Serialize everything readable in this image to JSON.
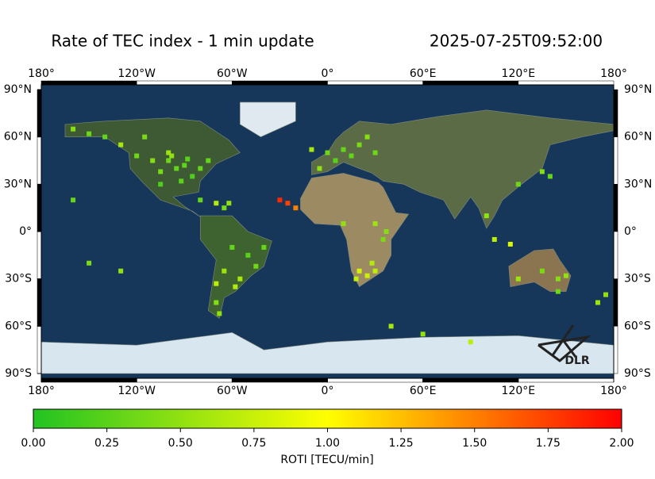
{
  "chart_data": {
    "type": "map",
    "title": "Rate of TEC index - 1 min update",
    "timestamp": "2025-07-25T09:52:00",
    "logo": "DLR",
    "colorbar_label": "ROTI [TECU/min]",
    "colormap": [
      "#22c322",
      "#ffff00",
      "#ff0000"
    ],
    "clim": [
      0,
      2
    ],
    "cticks": [
      {
        "value": 0,
        "label": "0.00"
      },
      {
        "value": 0.25,
        "label": "0.25"
      },
      {
        "value": 0.5,
        "label": "0.50"
      },
      {
        "value": 0.75,
        "label": "0.75"
      },
      {
        "value": 1,
        "label": "1.00"
      },
      {
        "value": 1.25,
        "label": "1.25"
      },
      {
        "value": 1.5,
        "label": "1.50"
      },
      {
        "value": 1.75,
        "label": "1.75"
      },
      {
        "value": 2,
        "label": "2.00"
      }
    ],
    "xlim": [
      -180,
      180
    ],
    "xticks": [
      {
        "value": -180,
        "label": "180°"
      },
      {
        "value": -120,
        "label": "120°W"
      },
      {
        "value": -60,
        "label": "60°W"
      },
      {
        "value": 0,
        "label": "0°"
      },
      {
        "value": 60,
        "label": "60°E"
      },
      {
        "value": 120,
        "label": "120°E"
      },
      {
        "value": 180,
        "label": "180°"
      }
    ],
    "ylim": [
      -90,
      90
    ],
    "yticks": [
      {
        "value": 90,
        "label": "90°N"
      },
      {
        "value": 60,
        "label": "60°N"
      },
      {
        "value": 30,
        "label": "30°N"
      },
      {
        "value": 0,
        "label": "0°"
      },
      {
        "value": -30,
        "label": "30°S"
      },
      {
        "value": -60,
        "label": "60°S"
      },
      {
        "value": -90,
        "label": "90°S"
      }
    ],
    "lon": [
      -100,
      -95,
      -90,
      -105,
      -85,
      -80,
      -110,
      -120,
      -98,
      -88,
      -100,
      -75,
      -115,
      -150,
      -140,
      -160,
      -130,
      -92,
      -105,
      -80,
      -70,
      -65,
      -62,
      -60,
      -50,
      -45,
      -55,
      -65,
      -70,
      -58,
      -70,
      -68,
      -40,
      -30,
      -25,
      -20,
      0,
      10,
      20,
      5,
      15,
      -5,
      25,
      30,
      -10,
      20,
      25,
      30,
      28,
      18,
      35,
      37,
      10,
      30,
      140,
      135,
      120,
      100,
      105,
      115,
      145,
      150,
      135,
      120,
      145,
      175,
      170,
      -160,
      -150,
      -130,
      60,
      90,
      40
    ],
    "lat": [
      45,
      40,
      42,
      38,
      35,
      40,
      45,
      48,
      48,
      46,
      50,
      45,
      60,
      62,
      60,
      65,
      55,
      32,
      30,
      20,
      18,
      15,
      18,
      -10,
      -15,
      -22,
      -30,
      -25,
      -33,
      -35,
      -45,
      -52,
      -10,
      20,
      18,
      15,
      50,
      52,
      55,
      45,
      48,
      40,
      60,
      50,
      52,
      -25,
      -28,
      -25,
      -20,
      -30,
      -5,
      0,
      5,
      5,
      35,
      38,
      30,
      10,
      -5,
      -8,
      -30,
      -28,
      -25,
      -30,
      -38,
      -40,
      -45,
      20,
      -20,
      -25,
      -65,
      -70,
      -60
    ],
    "values": [
      0.35,
      0.3,
      0.28,
      0.4,
      0.2,
      0.3,
      0.45,
      0.35,
      0.5,
      0.25,
      0.55,
      0.3,
      0.4,
      0.35,
      0.3,
      0.45,
      0.6,
      0.25,
      0.2,
      0.3,
      0.65,
      0.4,
      0.5,
      0.3,
      0.25,
      0.35,
      0.6,
      0.55,
      0.7,
      0.65,
      0.45,
      0.5,
      0.3,
      1.85,
      1.75,
      1.5,
      0.35,
      0.3,
      0.4,
      0.25,
      0.3,
      0.5,
      0.45,
      0.35,
      0.6,
      0.8,
      0.75,
      0.7,
      0.65,
      0.72,
      0.4,
      0.45,
      0.5,
      0.55,
      0.3,
      0.45,
      0.35,
      0.5,
      0.7,
      0.85,
      0.45,
      0.5,
      0.4,
      0.55,
      0.35,
      0.5,
      0.55,
      0.3,
      0.4,
      0.5,
      0.5,
      0.7,
      0.6
    ]
  }
}
